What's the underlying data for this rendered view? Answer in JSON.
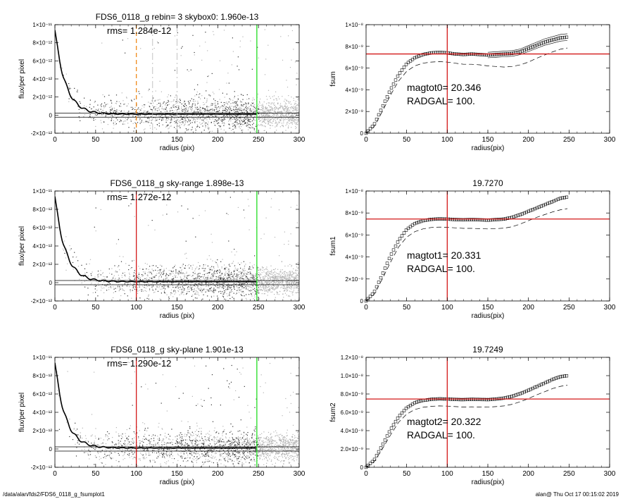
{
  "colors": {
    "orange": "#f08a1c",
    "red": "#d31818",
    "green": "#22dd22",
    "grey": "#b4b4b4",
    "black": "#000000"
  },
  "footer": {
    "left": "/data/alan/fds2/FDS6_0118_g_fsumplot1",
    "right": "alan@  Thu Oct 17 00:15:02 2019"
  },
  "chart_data": [
    {
      "id": "profile0",
      "type": "scatter",
      "title": "FDS6_0118_g rebin= 3    skybox0:  1.960e-13",
      "annotations": [
        "rms= 1.284e-12"
      ],
      "xlabel": "radius (pix)",
      "ylabel": "flux/per pixel",
      "xlim": [
        0,
        300
      ],
      "ylim": [
        -2e-12,
        1e-11
      ],
      "xticks": [
        "0",
        "50",
        "100",
        "150",
        "200",
        "250",
        "300"
      ],
      "yticks": [
        "-2×10⁻¹²",
        "0",
        "2×10⁻¹²",
        "4×10⁻¹²",
        "6×10⁻¹²",
        "8×10⁻¹²",
        "1×10⁻¹¹"
      ],
      "vlines": [
        {
          "x": 100,
          "color": "orange",
          "style": "dashed"
        },
        {
          "x": 120,
          "color": "grey",
          "style": "dashdot"
        },
        {
          "x": 150,
          "color": "grey",
          "style": "dashdot"
        },
        {
          "x": 248,
          "color": "green",
          "style": "solid"
        }
      ],
      "profile": {
        "amplitude": 9.3e-12,
        "scale_length": 13,
        "floor": 2e-13
      }
    },
    {
      "id": "profile1",
      "type": "scatter",
      "title": "FDS6_0118_g sky-range  1.898e-13",
      "annotations": [
        "rms= 1.272e-12"
      ],
      "xlabel": "radius (pix)",
      "ylabel": "flux/per pixel",
      "xlim": [
        0,
        300
      ],
      "ylim": [
        -2e-12,
        1e-11
      ],
      "xticks": [
        "0",
        "50",
        "100",
        "150",
        "200",
        "250",
        "300"
      ],
      "yticks": [
        "-2×10⁻¹²",
        "0",
        "2×10⁻¹²",
        "4×10⁻¹²",
        "6×10⁻¹²",
        "8×10⁻¹²",
        "1×10⁻¹¹"
      ],
      "vlines": [
        {
          "x": 100,
          "color": "red",
          "style": "solid"
        },
        {
          "x": 248,
          "color": "green",
          "style": "solid"
        }
      ],
      "profile": {
        "amplitude": 9.3e-12,
        "scale_length": 13,
        "floor": 2e-13
      }
    },
    {
      "id": "profile2",
      "type": "scatter",
      "title": "FDS6_0118_g sky-plane  1.901e-13",
      "annotations": [
        "rms= 1.290e-12"
      ],
      "xlabel": "radius (pix)",
      "ylabel": "flux/per pixel",
      "xlim": [
        0,
        300
      ],
      "ylim": [
        -2e-12,
        1e-11
      ],
      "xticks": [
        "0",
        "50",
        "100",
        "150",
        "200",
        "250",
        "300"
      ],
      "yticks": [
        "-2×10⁻¹²",
        "0",
        "2×10⁻¹²",
        "4×10⁻¹²",
        "6×10⁻¹²",
        "8×10⁻¹²",
        "1×10⁻¹¹"
      ],
      "vlines": [
        {
          "x": 100,
          "color": "red",
          "style": "solid"
        },
        {
          "x": 248,
          "color": "green",
          "style": "solid"
        }
      ],
      "profile": {
        "amplitude": 9.3e-12,
        "scale_length": 13,
        "floor": 2e-13
      }
    },
    {
      "id": "fsum0",
      "type": "line",
      "title": "",
      "annotations": [
        "magtot0=  20.346",
        "RADGAL=    100."
      ],
      "xlabel": "radius(pix)",
      "ylabel": "fsum",
      "xlim": [
        0,
        300
      ],
      "ylim": [
        0,
        1e-08
      ],
      "xticks": [
        "0",
        "50",
        "100",
        "150",
        "200",
        "250",
        "300"
      ],
      "yticks": [
        "0",
        "2×10⁻⁹",
        "4×10⁻⁹",
        "6×10⁻⁹",
        "8×10⁻⁹",
        "1×10⁻⁸"
      ],
      "vline_x": 100,
      "hline_y": 7.3e-09,
      "envelope": true,
      "series": [
        {
          "style": "squares",
          "x": [
            0,
            10,
            20,
            30,
            40,
            50,
            60,
            70,
            80,
            90,
            100,
            110,
            120,
            130,
            140,
            150,
            160,
            170,
            180,
            190,
            200,
            210,
            220,
            230,
            240,
            248
          ],
          "y": [
            0,
            8e-10,
            2.4e-09,
            4e-09,
            5.4e-09,
            6.4e-09,
            6.95e-09,
            7.25e-09,
            7.4e-09,
            7.45e-09,
            7.4e-09,
            7.3e-09,
            7.25e-09,
            7.3e-09,
            7.25e-09,
            7.2e-09,
            7.25e-09,
            7.3e-09,
            7.35e-09,
            7.5e-09,
            7.8e-09,
            8.1e-09,
            8.4e-09,
            8.6e-09,
            8.8e-09,
            8.85e-09
          ]
        },
        {
          "style": "dashed",
          "x": [
            0,
            10,
            20,
            30,
            40,
            50,
            60,
            70,
            80,
            90,
            100,
            110,
            120,
            130,
            140,
            150,
            160,
            170,
            180,
            190,
            200,
            210,
            220,
            230,
            240,
            248
          ],
          "y": [
            0,
            6e-10,
            2e-09,
            3.5e-09,
            4.8e-09,
            5.7e-09,
            6.2e-09,
            6.45e-09,
            6.55e-09,
            6.6e-09,
            6.55e-09,
            6.45e-09,
            6.35e-09,
            6.35e-09,
            6.3e-09,
            6.2e-09,
            6.15e-09,
            6.1e-09,
            6.15e-09,
            6.3e-09,
            6.55e-09,
            6.9e-09,
            7.2e-09,
            7.5e-09,
            7.75e-09,
            7.85e-09
          ]
        }
      ]
    },
    {
      "id": "fsum1",
      "type": "line",
      "title": "19.7270",
      "annotations": [
        "magtot1=  20.331",
        "RADGAL=    100."
      ],
      "xlabel": "radius(pix)",
      "ylabel": "fsum1",
      "xlim": [
        0,
        300
      ],
      "ylim": [
        0,
        1e-08
      ],
      "xticks": [
        "0",
        "50",
        "100",
        "150",
        "200",
        "250",
        "300"
      ],
      "yticks": [
        "0",
        "2×10⁻⁹",
        "4×10⁻⁹",
        "6×10⁻⁹",
        "8×10⁻⁹",
        "1×10⁻⁸"
      ],
      "vline_x": 100,
      "hline_y": 7.45e-09,
      "envelope": false,
      "series": [
        {
          "style": "squares",
          "x": [
            0,
            10,
            20,
            30,
            40,
            50,
            60,
            70,
            80,
            90,
            100,
            110,
            120,
            130,
            140,
            150,
            160,
            170,
            180,
            190,
            200,
            210,
            220,
            230,
            240,
            248
          ],
          "y": [
            0,
            8e-10,
            2.4e-09,
            4.1e-09,
            5.5e-09,
            6.5e-09,
            7.05e-09,
            7.3e-09,
            7.42e-09,
            7.47e-09,
            7.45e-09,
            7.4e-09,
            7.38e-09,
            7.4e-09,
            7.38e-09,
            7.35e-09,
            7.4e-09,
            7.45e-09,
            7.6e-09,
            7.85e-09,
            8.15e-09,
            8.45e-09,
            8.75e-09,
            9.05e-09,
            9.35e-09,
            9.45e-09
          ]
        },
        {
          "style": "dashed",
          "x": [
            0,
            10,
            20,
            30,
            40,
            50,
            60,
            70,
            80,
            90,
            100,
            110,
            120,
            130,
            140,
            150,
            160,
            170,
            180,
            190,
            200,
            210,
            220,
            230,
            240,
            248
          ],
          "y": [
            0,
            6e-10,
            2e-09,
            3.5e-09,
            4.9e-09,
            5.8e-09,
            6.3e-09,
            6.55e-09,
            6.68e-09,
            6.72e-09,
            6.7e-09,
            6.65e-09,
            6.6e-09,
            6.6e-09,
            6.58e-09,
            6.55e-09,
            6.58e-09,
            6.62e-09,
            6.75e-09,
            7e-09,
            7.3e-09,
            7.6e-09,
            7.85e-09,
            8.1e-09,
            8.3e-09,
            8.4e-09
          ]
        }
      ]
    },
    {
      "id": "fsum2",
      "type": "line",
      "title": "19.7249",
      "annotations": [
        "magtot2=  20.322",
        "RADGAL=    100."
      ],
      "xlabel": "radius(pix)",
      "ylabel": "fsum2",
      "xlim": [
        0,
        300
      ],
      "ylim": [
        0,
        1.2e-08
      ],
      "xticks": [
        "0",
        "50",
        "100",
        "150",
        "200",
        "250",
        "300"
      ],
      "yticks": [
        "0",
        "2.0×10⁻⁹",
        "4.0×10⁻⁹",
        "6.0×10⁻⁹",
        "8.0×10⁻⁹",
        "1.0×10⁻⁸",
        "1.2×10⁻⁸"
      ],
      "vline_x": 100,
      "hline_y": 7.45e-09,
      "envelope": false,
      "series": [
        {
          "style": "squares",
          "x": [
            0,
            10,
            20,
            30,
            40,
            50,
            60,
            70,
            80,
            90,
            100,
            110,
            120,
            130,
            140,
            150,
            160,
            170,
            180,
            190,
            200,
            210,
            220,
            230,
            240,
            248
          ],
          "y": [
            0,
            8e-10,
            2.4e-09,
            4.1e-09,
            5.5e-09,
            6.5e-09,
            7.05e-09,
            7.3e-09,
            7.42e-09,
            7.47e-09,
            7.45e-09,
            7.4e-09,
            7.38e-09,
            7.42e-09,
            7.4e-09,
            7.38e-09,
            7.45e-09,
            7.55e-09,
            7.75e-09,
            8.05e-09,
            8.4e-09,
            8.8e-09,
            9.2e-09,
            9.6e-09,
            9.9e-09,
            1e-08
          ]
        },
        {
          "style": "dashed",
          "x": [
            0,
            10,
            20,
            30,
            40,
            50,
            60,
            70,
            80,
            90,
            100,
            110,
            120,
            130,
            140,
            150,
            160,
            170,
            180,
            190,
            200,
            210,
            220,
            230,
            240,
            248
          ],
          "y": [
            0,
            6e-10,
            2e-09,
            3.5e-09,
            4.9e-09,
            5.8e-09,
            6.3e-09,
            6.55e-09,
            6.65e-09,
            6.7e-09,
            6.68e-09,
            6.62e-09,
            6.58e-09,
            6.6e-09,
            6.58e-09,
            6.56e-09,
            6.62e-09,
            6.7e-09,
            6.88e-09,
            7.15e-09,
            7.5e-09,
            7.9e-09,
            8.25e-09,
            8.6e-09,
            8.85e-09,
            8.95e-09
          ]
        }
      ]
    }
  ]
}
